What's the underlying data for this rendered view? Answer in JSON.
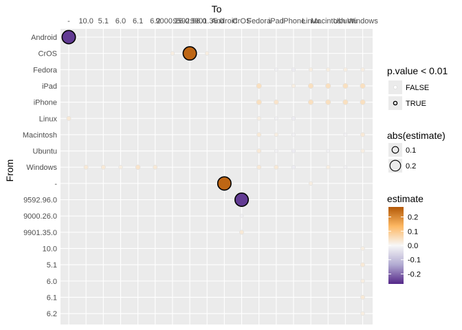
{
  "chart_data": {
    "type": "scatter",
    "title": "",
    "xlabel": "To",
    "ylabel": "From",
    "x_categories": [
      "-",
      "10.0",
      "5.1",
      "6.0",
      "6.1",
      "6.2",
      "9000.26.0",
      "9592.96.0",
      "9901.35.0",
      "Android",
      "CrOS",
      "Fedora",
      "iPad",
      "iPhone",
      "Linux",
      "Macintosh",
      "Ubuntu",
      "Windows"
    ],
    "y_categories": [
      "Android",
      "CrOS",
      "Fedora",
      "iPad",
      "iPhone",
      "Linux",
      "Macintosh",
      "Ubuntu",
      "Windows",
      "-",
      "9592.96.0",
      "9000.26.0",
      "9901.35.0",
      "10.0",
      "5.1",
      "6.0",
      "6.1",
      "6.2"
    ],
    "points": [
      {
        "from": "Android",
        "to": "-",
        "estimate": -0.25,
        "significant": true
      },
      {
        "from": "CrOS",
        "to": "9000.26.0",
        "estimate": 0.02,
        "significant": false
      },
      {
        "from": "CrOS",
        "to": "9592.96.0",
        "estimate": 0.25,
        "significant": true
      },
      {
        "from": "CrOS",
        "to": "9901.35.0",
        "estimate": 0.02,
        "significant": false
      },
      {
        "from": "Fedora",
        "to": "iPad",
        "estimate": -0.01,
        "significant": false
      },
      {
        "from": "Fedora",
        "to": "iPhone",
        "estimate": -0.02,
        "significant": false
      },
      {
        "from": "Fedora",
        "to": "Linux",
        "estimate": 0.02,
        "significant": false
      },
      {
        "from": "Fedora",
        "to": "Macintosh",
        "estimate": 0.02,
        "significant": false
      },
      {
        "from": "Fedora",
        "to": "Ubuntu",
        "estimate": 0.02,
        "significant": false
      },
      {
        "from": "Fedora",
        "to": "Windows",
        "estimate": 0.02,
        "significant": false
      },
      {
        "from": "iPad",
        "to": "Fedora",
        "estimate": 0.05,
        "significant": false
      },
      {
        "from": "iPad",
        "to": "iPhone",
        "estimate": 0.02,
        "significant": false
      },
      {
        "from": "iPad",
        "to": "Linux",
        "estimate": 0.05,
        "significant": false
      },
      {
        "from": "iPad",
        "to": "Macintosh",
        "estimate": 0.05,
        "significant": false
      },
      {
        "from": "iPad",
        "to": "Ubuntu",
        "estimate": 0.05,
        "significant": false
      },
      {
        "from": "iPad",
        "to": "Windows",
        "estimate": 0.05,
        "significant": false
      },
      {
        "from": "iPhone",
        "to": "Fedora",
        "estimate": 0.05,
        "significant": false
      },
      {
        "from": "iPhone",
        "to": "iPad",
        "estimate": 0.04,
        "significant": false
      },
      {
        "from": "iPhone",
        "to": "Linux",
        "estimate": 0.05,
        "significant": false
      },
      {
        "from": "iPhone",
        "to": "Macintosh",
        "estimate": 0.05,
        "significant": false
      },
      {
        "from": "iPhone",
        "to": "Ubuntu",
        "estimate": 0.05,
        "significant": false
      },
      {
        "from": "iPhone",
        "to": "Windows",
        "estimate": 0.05,
        "significant": false
      },
      {
        "from": "Linux",
        "to": "-",
        "estimate": 0.03,
        "significant": false
      },
      {
        "from": "Linux",
        "to": "Fedora",
        "estimate": 0.02,
        "significant": false
      },
      {
        "from": "Linux",
        "to": "iPad",
        "estimate": -0.01,
        "significant": false
      },
      {
        "from": "Linux",
        "to": "iPhone",
        "estimate": -0.02,
        "significant": false
      },
      {
        "from": "Macintosh",
        "to": "Fedora",
        "estimate": 0.03,
        "significant": false
      },
      {
        "from": "Macintosh",
        "to": "iPad",
        "estimate": 0.02,
        "significant": false
      },
      {
        "from": "Macintosh",
        "to": "iPhone",
        "estimate": -0.01,
        "significant": false
      },
      {
        "from": "Macintosh",
        "to": "Ubuntu",
        "estimate": -0.01,
        "significant": false
      },
      {
        "from": "Macintosh",
        "to": "Windows",
        "estimate": 0.03,
        "significant": false
      },
      {
        "from": "Ubuntu",
        "to": "Fedora",
        "estimate": 0.03,
        "significant": false
      },
      {
        "from": "Ubuntu",
        "to": "iPad",
        "estimate": -0.01,
        "significant": false
      },
      {
        "from": "Ubuntu",
        "to": "iPhone",
        "estimate": -0.02,
        "significant": false
      },
      {
        "from": "Ubuntu",
        "to": "Macintosh",
        "estimate": -0.01,
        "significant": false
      },
      {
        "from": "Ubuntu",
        "to": "Windows",
        "estimate": 0.02,
        "significant": false
      },
      {
        "from": "Windows",
        "to": "10.0",
        "estimate": 0.03,
        "significant": false
      },
      {
        "from": "Windows",
        "to": "5.1",
        "estimate": 0.03,
        "significant": false
      },
      {
        "from": "Windows",
        "to": "6.0",
        "estimate": 0.02,
        "significant": false
      },
      {
        "from": "Windows",
        "to": "6.1",
        "estimate": 0.04,
        "significant": false
      },
      {
        "from": "Windows",
        "to": "6.2",
        "estimate": 0.03,
        "significant": false
      },
      {
        "from": "Windows",
        "to": "Fedora",
        "estimate": 0.03,
        "significant": false
      },
      {
        "from": "Windows",
        "to": "iPad",
        "estimate": 0.03,
        "significant": false
      },
      {
        "from": "Windows",
        "to": "iPhone",
        "estimate": -0.02,
        "significant": false
      },
      {
        "from": "Windows",
        "to": "Ubuntu",
        "estimate": -0.01,
        "significant": false
      },
      {
        "from": "Windows",
        "to": "Macintosh",
        "estimate": 0.02,
        "significant": false
      },
      {
        "from": "-",
        "to": "Android",
        "estimate": 0.25,
        "significant": true
      },
      {
        "from": "-",
        "to": "Linux",
        "estimate": 0.02,
        "significant": false
      },
      {
        "from": "9592.96.0",
        "to": "CrOS",
        "estimate": -0.25,
        "significant": true
      },
      {
        "from": "9000.26.0",
        "to": "CrOS",
        "estimate": -0.01,
        "significant": false
      },
      {
        "from": "9901.35.0",
        "to": "CrOS",
        "estimate": 0.03,
        "significant": false
      },
      {
        "from": "10.0",
        "to": "Windows",
        "estimate": 0.02,
        "significant": false
      },
      {
        "from": "5.1",
        "to": "Windows",
        "estimate": 0.03,
        "significant": false
      },
      {
        "from": "6.0",
        "to": "Windows",
        "estimate": 0.02,
        "significant": false
      },
      {
        "from": "6.1",
        "to": "Windows",
        "estimate": 0.03,
        "significant": false
      },
      {
        "from": "6.2",
        "to": "Windows",
        "estimate": 0.02,
        "significant": false
      }
    ],
    "legends": {
      "significance": {
        "title": "p.value < 0.01",
        "entries": [
          {
            "label": "FALSE",
            "significant": false
          },
          {
            "label": "TRUE",
            "significant": true
          }
        ]
      },
      "size": {
        "title": "abs(estimate)",
        "entries": [
          {
            "label": "0.1",
            "value": 0.1
          },
          {
            "label": "0.2",
            "value": 0.2
          }
        ]
      },
      "color": {
        "title": "estimate",
        "range": [
          -0.27,
          0.27
        ],
        "ticks": [
          {
            "label": "0.2",
            "value": 0.2
          },
          {
            "label": "0.1",
            "value": 0.1
          },
          {
            "label": "0.0",
            "value": 0.0
          },
          {
            "label": "-0.1",
            "value": -0.1
          },
          {
            "label": "-0.2",
            "value": -0.2
          }
        ]
      }
    },
    "colors": {
      "panel_background": "#ebebeb",
      "grid": "#ffffff",
      "negative_end": "#542788",
      "negative_mid": "#b2abd2",
      "neutral": "#f7f7f7",
      "positive_mid": "#fdb863",
      "positive_end": "#b35806",
      "outline_significant": "#000000",
      "outline_insignificant": "#dddddd"
    },
    "grid": true,
    "legend_position": "right"
  }
}
